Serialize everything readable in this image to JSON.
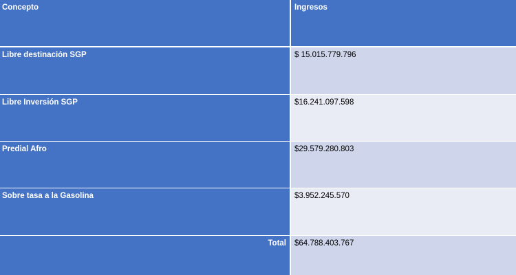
{
  "table": {
    "headers": {
      "concepto": "Concepto",
      "ingresos": "Ingresos"
    },
    "rows": [
      {
        "concepto": "Libre destinación SGP",
        "ingresos": "$ 15.015.779.796"
      },
      {
        "concepto": "Libre Inversión SGP",
        "ingresos": "$16.241.097.598"
      },
      {
        "concepto": "Predial Afro",
        "ingresos": "$29.579.280.803"
      },
      {
        "concepto": "Sobre tasa a la Gasolina",
        "ingresos": "$3.952.245.570"
      }
    ],
    "total": {
      "label": "Total",
      "value": "$64.788.403.767"
    }
  },
  "colors": {
    "header_blue": "#4472c4",
    "band_dark": "#cfd5ea",
    "band_light": "#e9ebf5"
  }
}
